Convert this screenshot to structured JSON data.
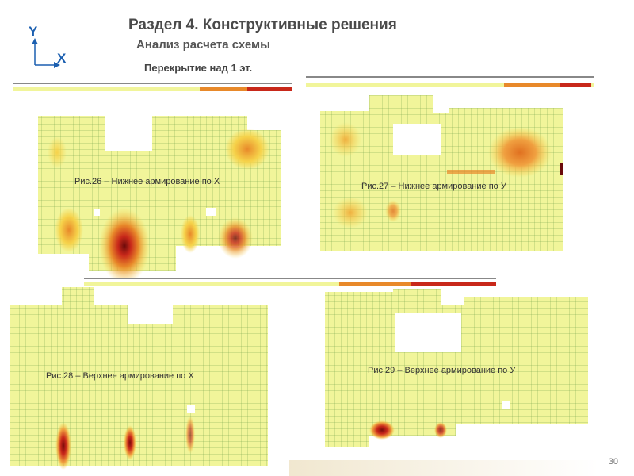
{
  "slide": {
    "title": "Раздел 4. Конструктивные решения",
    "subtitle": "Анализ расчета схемы",
    "floor_label": "Перекрытие над 1 эт.",
    "page_number": "30",
    "axis": {
      "y_label": "Y",
      "x_label": "X"
    }
  },
  "figures": [
    {
      "id": "fig26",
      "caption": "Рис.26 – Нижнее армирование по Х"
    },
    {
      "id": "fig27",
      "caption": "Рис.27 – Нижнее армирование по У"
    },
    {
      "id": "fig28",
      "caption": "Рис.28 – Верхнее армирование по Х"
    },
    {
      "id": "fig29",
      "caption": "Рис.29 – Верхнее армирование по У"
    }
  ],
  "colors": {
    "slab_fill": "#f1f59a",
    "mesh_line": "#3a7a28",
    "heat_light": "#f6d24a",
    "heat_orange": "#e8892a",
    "heat_red": "#c8281a",
    "heat_dark": "#6a0a0a",
    "accent_blue": "#1b5fb0"
  }
}
